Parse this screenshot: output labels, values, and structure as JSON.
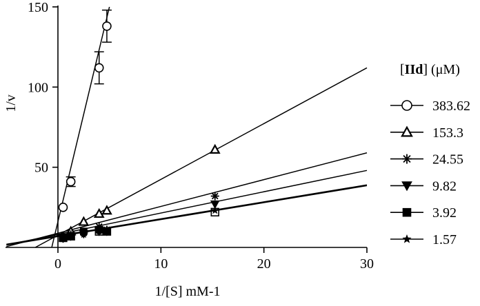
{
  "chart_data": {
    "type": "scatter",
    "title": "",
    "xlabel": "1/[S] mM-1",
    "ylabel": "1/v",
    "xlim": [
      -5,
      30
    ],
    "ylim": [
      0,
      150
    ],
    "x_ticks": [
      0,
      10,
      20,
      30
    ],
    "x_tick_labels": [
      "0",
      "10",
      "20",
      "30"
    ],
    "y_ticks": [
      50,
      100,
      150
    ],
    "y_tick_labels": [
      "50",
      "100",
      "150"
    ],
    "grid": false,
    "legend_position": "right",
    "legend_title_bold": "IId",
    "legend_title_left": "[",
    "legend_title_right": "] (μM)",
    "series": [
      {
        "name": "383.62",
        "marker": "open-circle",
        "x": [
          0.5,
          1.25,
          4.0,
          4.75
        ],
        "y": [
          25,
          41,
          112,
          138
        ],
        "error": [
          0,
          3,
          10,
          10
        ],
        "fit": {
          "x1": -0.6,
          "y1": 0,
          "x2": 5.0,
          "y2": 150
        }
      },
      {
        "name": "153.3",
        "marker": "open-triangle",
        "x": [
          1.25,
          2.5,
          4.0,
          4.75,
          15.25
        ],
        "y": [
          10,
          16,
          21,
          23,
          61
        ],
        "error": [
          0,
          0,
          0,
          0,
          0
        ],
        "fit": {
          "x1": -2.2,
          "y1": 0,
          "x2": 30,
          "y2": 112
        }
      },
      {
        "name": "24.55",
        "marker": "asterisk",
        "x": [
          0.5,
          1.25,
          2.5,
          4.0,
          4.75,
          15.25
        ],
        "y": [
          5.5,
          8,
          9,
          13,
          11,
          32
        ],
        "error": [
          0,
          0,
          0,
          0,
          0,
          0
        ],
        "fit": {
          "x1": -5,
          "y1": 0.5,
          "x2": 30,
          "y2": 59
        }
      },
      {
        "name": "9.82",
        "marker": "filled-triangle-down",
        "x": [
          0.5,
          1.25,
          2.5,
          4.0,
          4.75,
          15.25
        ],
        "y": [
          6,
          7,
          8.5,
          10,
          10,
          27
        ],
        "error": [
          0,
          0,
          0,
          0,
          0,
          0
        ],
        "fit": {
          "x1": -5,
          "y1": 1.5,
          "x2": 30,
          "y2": 48
        }
      },
      {
        "name": "3.92",
        "marker": "filled-square",
        "x": [
          0.5,
          1.25,
          2.5,
          4.0,
          4.75
        ],
        "y": [
          6,
          7,
          10,
          11,
          10
        ],
        "error": [
          0,
          0,
          0,
          0,
          0
        ],
        "fit": {
          "x1": -5,
          "y1": 1.5,
          "x2": 30,
          "y2": 38.5
        }
      },
      {
        "name": "1.57",
        "marker": "star",
        "x": [
          0.5,
          1.25,
          2.5,
          4.0,
          4.75,
          15.25
        ],
        "y": [
          6,
          7,
          8,
          10,
          10,
          23
        ],
        "error": [
          0,
          0,
          0,
          0,
          0,
          0
        ],
        "fit": {
          "x1": -5,
          "y1": 2,
          "x2": 30,
          "y2": 39
        }
      },
      {
        "name": "3.92 (open)",
        "legend": false,
        "marker": "open-square",
        "x": [
          0.5,
          1.25,
          4.0,
          4.75,
          15.25
        ],
        "y": [
          6,
          7,
          10,
          10,
          22
        ],
        "error": [
          0,
          0,
          0,
          0,
          0
        ],
        "fit": null
      }
    ]
  }
}
